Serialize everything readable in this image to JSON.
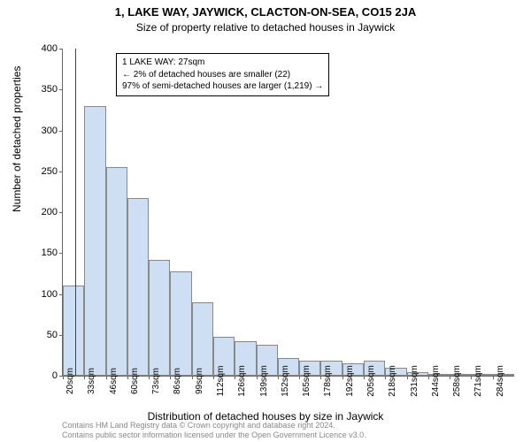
{
  "title": "1, LAKE WAY, JAYWICK, CLACTON-ON-SEA, CO15 2JA",
  "subtitle": "Size of property relative to detached houses in Jaywick",
  "chart": {
    "type": "histogram",
    "ylabel": "Number of detached properties",
    "xlabel": "Distribution of detached houses by size in Jaywick",
    "ylim": [
      0,
      400
    ],
    "ytick_step": 50,
    "bar_fill_color": "#cedff3",
    "bar_border_color": "#888888",
    "axis_color": "#666666",
    "background_color": "#ffffff",
    "marker_color": "#dd0000",
    "label_fontsize": 12,
    "tick_fontsize": 11,
    "x_categories": [
      "20sqm",
      "33sqm",
      "46sqm",
      "60sqm",
      "73sqm",
      "86sqm",
      "99sqm",
      "112sqm",
      "126sqm",
      "139sqm",
      "152sqm",
      "165sqm",
      "178sqm",
      "192sqm",
      "205sqm",
      "218sqm",
      "231sqm",
      "244sqm",
      "258sqm",
      "271sqm",
      "284sqm"
    ],
    "values": [
      110,
      330,
      255,
      217,
      142,
      128,
      90,
      48,
      42,
      38,
      22,
      18,
      18,
      15,
      18,
      10,
      4,
      2,
      2,
      2,
      2
    ],
    "marker_value": 27,
    "marker_x_min": 20,
    "marker_x_max": 284
  },
  "info_box": {
    "line1": "1 LAKE WAY: 27sqm",
    "line2": "← 2% of detached houses are smaller (22)",
    "line3": "97% of semi-detached houses are larger (1,219) →"
  },
  "footer": {
    "line1": "Contains HM Land Registry data © Crown copyright and database right 2024.",
    "line2": "Contains public sector information licensed under the Open Government Licence v3.0."
  }
}
